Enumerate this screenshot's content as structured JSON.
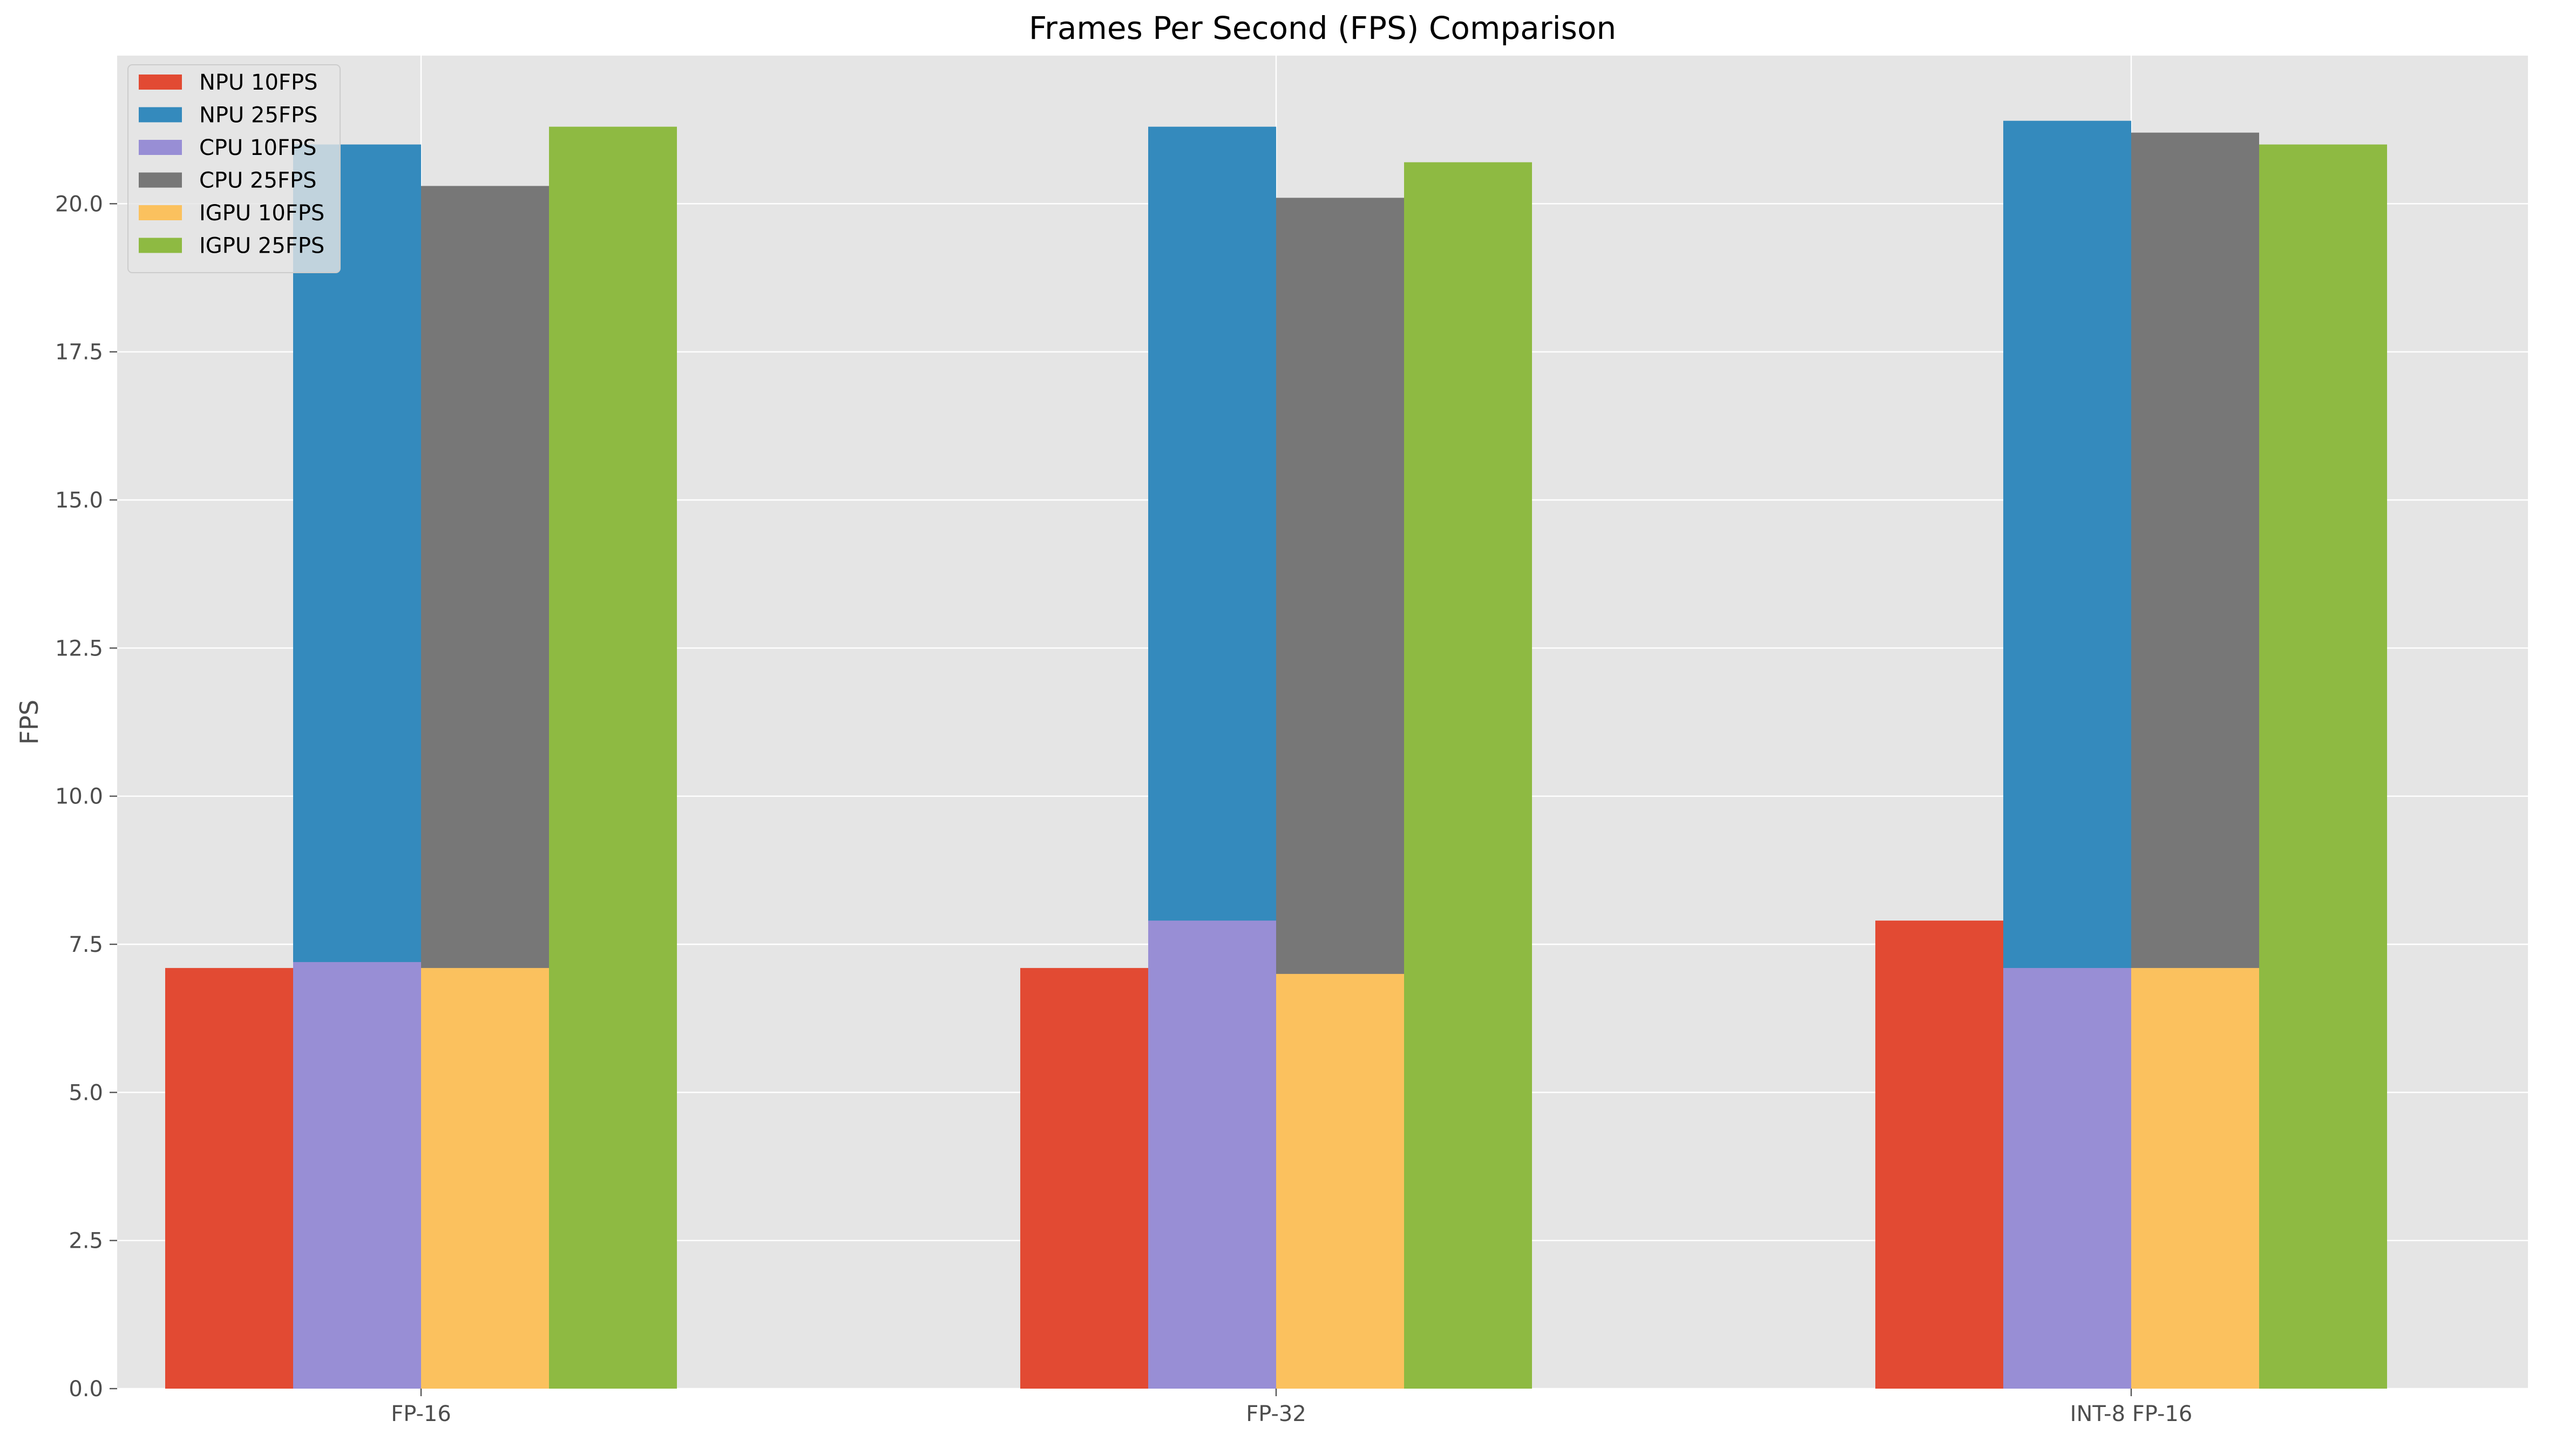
{
  "chart_data": {
    "type": "bar",
    "title": "Frames Per Second (FPS) Comparison",
    "xlabel": "",
    "ylabel": "FPS",
    "categories": [
      "FP-16",
      "FP-32",
      "INT-8 FP-16"
    ],
    "ylim": [
      0,
      22.5
    ],
    "yticks": [
      0.0,
      2.5,
      5.0,
      7.5,
      10.0,
      12.5,
      15.0,
      17.5,
      20.0
    ],
    "ytick_labels": [
      "0.0",
      "2.5",
      "5.0",
      "7.5",
      "10.0",
      "12.5",
      "15.0",
      "17.5",
      "20.0"
    ],
    "grid": true,
    "legend_position": "top-left",
    "series": [
      {
        "name": "NPU 10FPS",
        "color": "#E24A33",
        "slot": 0,
        "values": [
          7.1,
          7.1,
          7.9
        ]
      },
      {
        "name": "NPU 25FPS",
        "color": "#348ABD",
        "slot": 1,
        "values": [
          21.0,
          21.3,
          21.4
        ]
      },
      {
        "name": "CPU 10FPS",
        "color": "#988ED5",
        "slot": 1,
        "values": [
          7.2,
          7.9,
          7.1
        ]
      },
      {
        "name": "CPU 25FPS",
        "color": "#777777",
        "slot": 2,
        "values": [
          20.3,
          20.1,
          21.2
        ]
      },
      {
        "name": "IGPU 10FPS",
        "color": "#FBC15E",
        "slot": 2,
        "values": [
          7.1,
          7.0,
          7.1
        ]
      },
      {
        "name": "IGPU 25FPS",
        "color": "#8EBA42",
        "slot": 3,
        "values": [
          21.3,
          20.7,
          21.0
        ]
      }
    ]
  }
}
